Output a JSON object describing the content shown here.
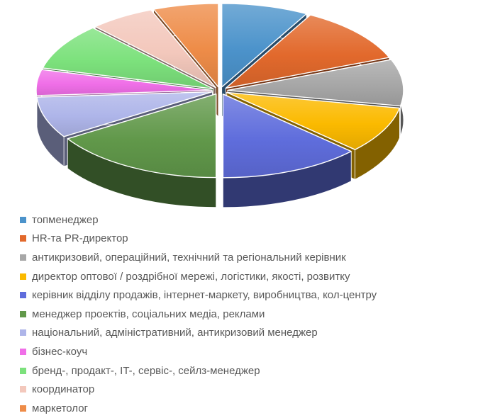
{
  "chart_data": {
    "type": "pie",
    "style": "3d-exploded",
    "title": "",
    "data_labels_shown": false,
    "legend_position": "bottom-left",
    "background_color": "#ffffff",
    "legend_text_color": "#595959",
    "slices": [
      {
        "label": "топменеджер",
        "value": 8,
        "color": "#4C93CB"
      },
      {
        "label": "HR-та PR-директор",
        "value": 11,
        "color": "#E2692C"
      },
      {
        "label": "антикризовий, операційний, технічний та регіональний керівник",
        "value": 9,
        "color": "#A7A7A7"
      },
      {
        "label": "директор оптової / роздрібної мережі, логістики, якості, розвитку",
        "value": 9,
        "color": "#FBBA00"
      },
      {
        "label": "керівник відділу продажів, інтернет-маркету, виробництва, кол-центру",
        "value": 13,
        "color": "#5F6DDC"
      },
      {
        "label": "менеджер проектів, соціальних медіа, реклами",
        "value": 16,
        "color": "#61984A"
      },
      {
        "label": "національний, адміністративний, антикризовий менеджер",
        "value": 8,
        "color": "#AEB5E9"
      },
      {
        "label": "бізнес-коуч",
        "value": 5,
        "color": "#F06FE8"
      },
      {
        "label": "бренд-, продакт-, IT-, сервіс-, сейлз-менеджер",
        "value": 9,
        "color": "#7CE17C"
      },
      {
        "label": "координатор",
        "value": 6,
        "color": "#F3C8BC"
      },
      {
        "label": "маркетолог",
        "value": 6,
        "color": "#EE8C48"
      }
    ]
  }
}
